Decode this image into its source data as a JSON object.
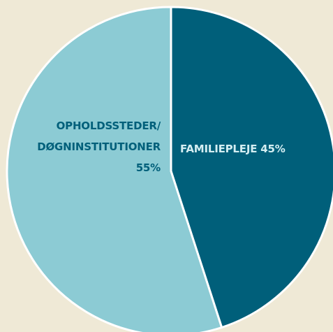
{
  "chart_data": {
    "type": "pie",
    "categories": [
      "FAMILIEPLEJE",
      "OPHOLDSSTEDER/ DØGNINSTITUTIONER"
    ],
    "values": [
      45,
      55
    ],
    "value_labels": [
      "45%",
      "55%"
    ],
    "colors": [
      "#005f7a",
      "#8ccbd4"
    ],
    "label_colors": [
      "#d4eef2",
      "#005f7a"
    ]
  }
}
